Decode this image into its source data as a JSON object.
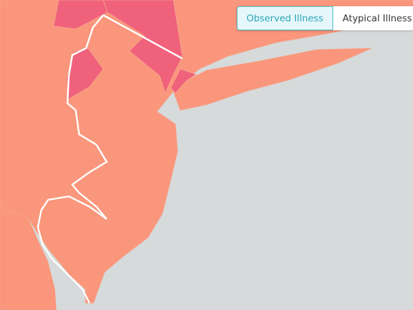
{
  "toggle": {
    "options": [
      "Observed Illness",
      "Atypical Illness"
    ],
    "selected": 0
  }
}
